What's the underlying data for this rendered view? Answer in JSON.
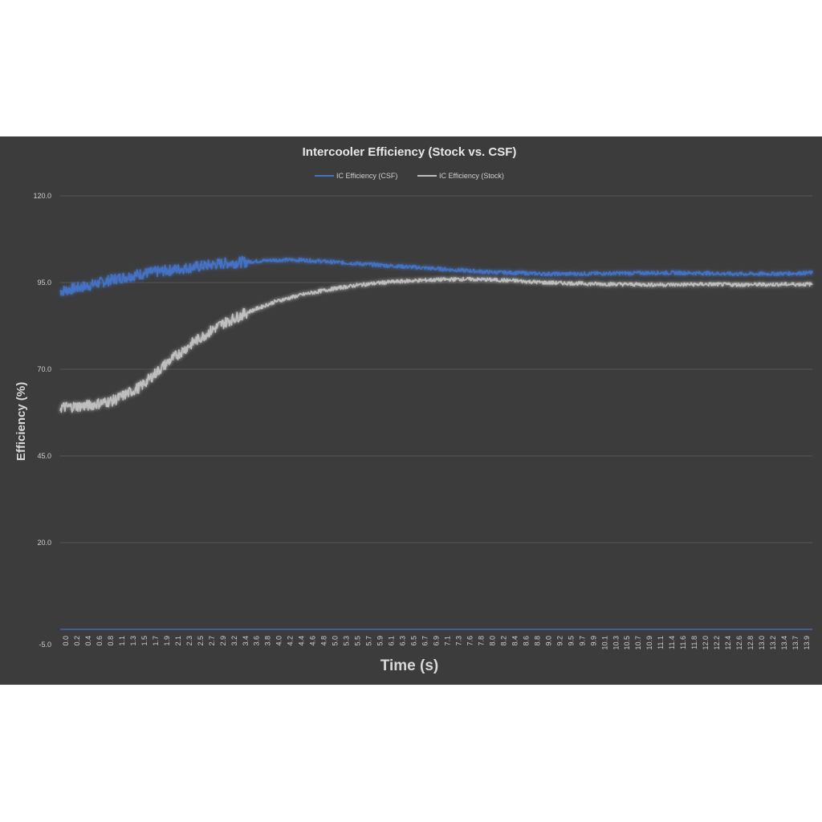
{
  "chart_data": {
    "type": "line",
    "title": "Intercooler Efficiency (Stock vs. CSF)",
    "xlabel": "Time (s)",
    "ylabel": "Efficiency (%)",
    "ylim": [
      -5.0,
      120.0
    ],
    "yticks": [
      "120.0",
      "95.0",
      "70.0",
      "45.0",
      "20.0",
      "-5.0"
    ],
    "xlim": [
      0.0,
      14.0
    ],
    "xticks": [
      "0.0",
      "0.2",
      "0.4",
      "0.6",
      "0.8",
      "1.1",
      "1.3",
      "1.5",
      "1.7",
      "1.9",
      "2.1",
      "2.3",
      "2.5",
      "2.7",
      "2.9",
      "3.2",
      "3.4",
      "3.6",
      "3.8",
      "4.0",
      "4.2",
      "4.4",
      "4.6",
      "4.8",
      "5.0",
      "5.3",
      "5.5",
      "5.7",
      "5.9",
      "6.1",
      "6.3",
      "6.5",
      "6.7",
      "6.9",
      "7.1",
      "7.3",
      "7.6",
      "7.8",
      "8.0",
      "8.2",
      "8.4",
      "8.6",
      "8.8",
      "9.0",
      "9.2",
      "9.5",
      "9.7",
      "9.9",
      "10.1",
      "10.3",
      "10.5",
      "10.7",
      "10.9",
      "11.1",
      "11.4",
      "11.6",
      "11.8",
      "12.0",
      "12.2",
      "12.4",
      "12.6",
      "12.8",
      "13.0",
      "13.2",
      "13.4",
      "13.7",
      "13.9"
    ],
    "grid": true,
    "legend_position": "top",
    "series": [
      {
        "name": "IC Efficiency (CSF)",
        "color": "#4472c4",
        "x": [
          0.0,
          0.5,
          1.0,
          1.5,
          2.0,
          2.5,
          3.0,
          3.5,
          4.0,
          4.5,
          5.0,
          5.5,
          6.0,
          6.5,
          7.0,
          7.5,
          8.0,
          8.5,
          9.0,
          9.5,
          10.0,
          10.5,
          11.0,
          11.5,
          12.0,
          12.5,
          13.0,
          13.5,
          14.0
        ],
        "y": [
          92.5,
          94.0,
          96.0,
          97.5,
          98.5,
          99.5,
          100.5,
          101.0,
          101.5,
          101.5,
          101.0,
          100.5,
          100.0,
          99.5,
          99.0,
          98.5,
          98.0,
          97.8,
          97.5,
          97.5,
          97.6,
          97.7,
          97.8,
          97.8,
          97.7,
          97.5,
          97.5,
          97.6,
          97.8
        ]
      },
      {
        "name": "IC Efficiency (Stock)",
        "color": "#bfbfbf",
        "x": [
          0.0,
          0.5,
          1.0,
          1.5,
          2.0,
          2.5,
          3.0,
          3.5,
          4.0,
          4.5,
          5.0,
          5.5,
          6.0,
          6.5,
          7.0,
          7.5,
          8.0,
          8.5,
          9.0,
          9.5,
          10.0,
          10.5,
          11.0,
          11.5,
          12.0,
          12.5,
          13.0,
          13.5,
          14.0
        ],
        "y": [
          59.0,
          59.5,
          61.0,
          65.0,
          72.0,
          78.0,
          83.0,
          86.5,
          89.5,
          91.5,
          93.0,
          94.2,
          95.0,
          95.5,
          95.8,
          96.0,
          95.8,
          95.5,
          95.0,
          94.8,
          94.6,
          94.5,
          94.4,
          94.4,
          94.5,
          94.4,
          94.4,
          94.5,
          94.5
        ]
      }
    ]
  }
}
